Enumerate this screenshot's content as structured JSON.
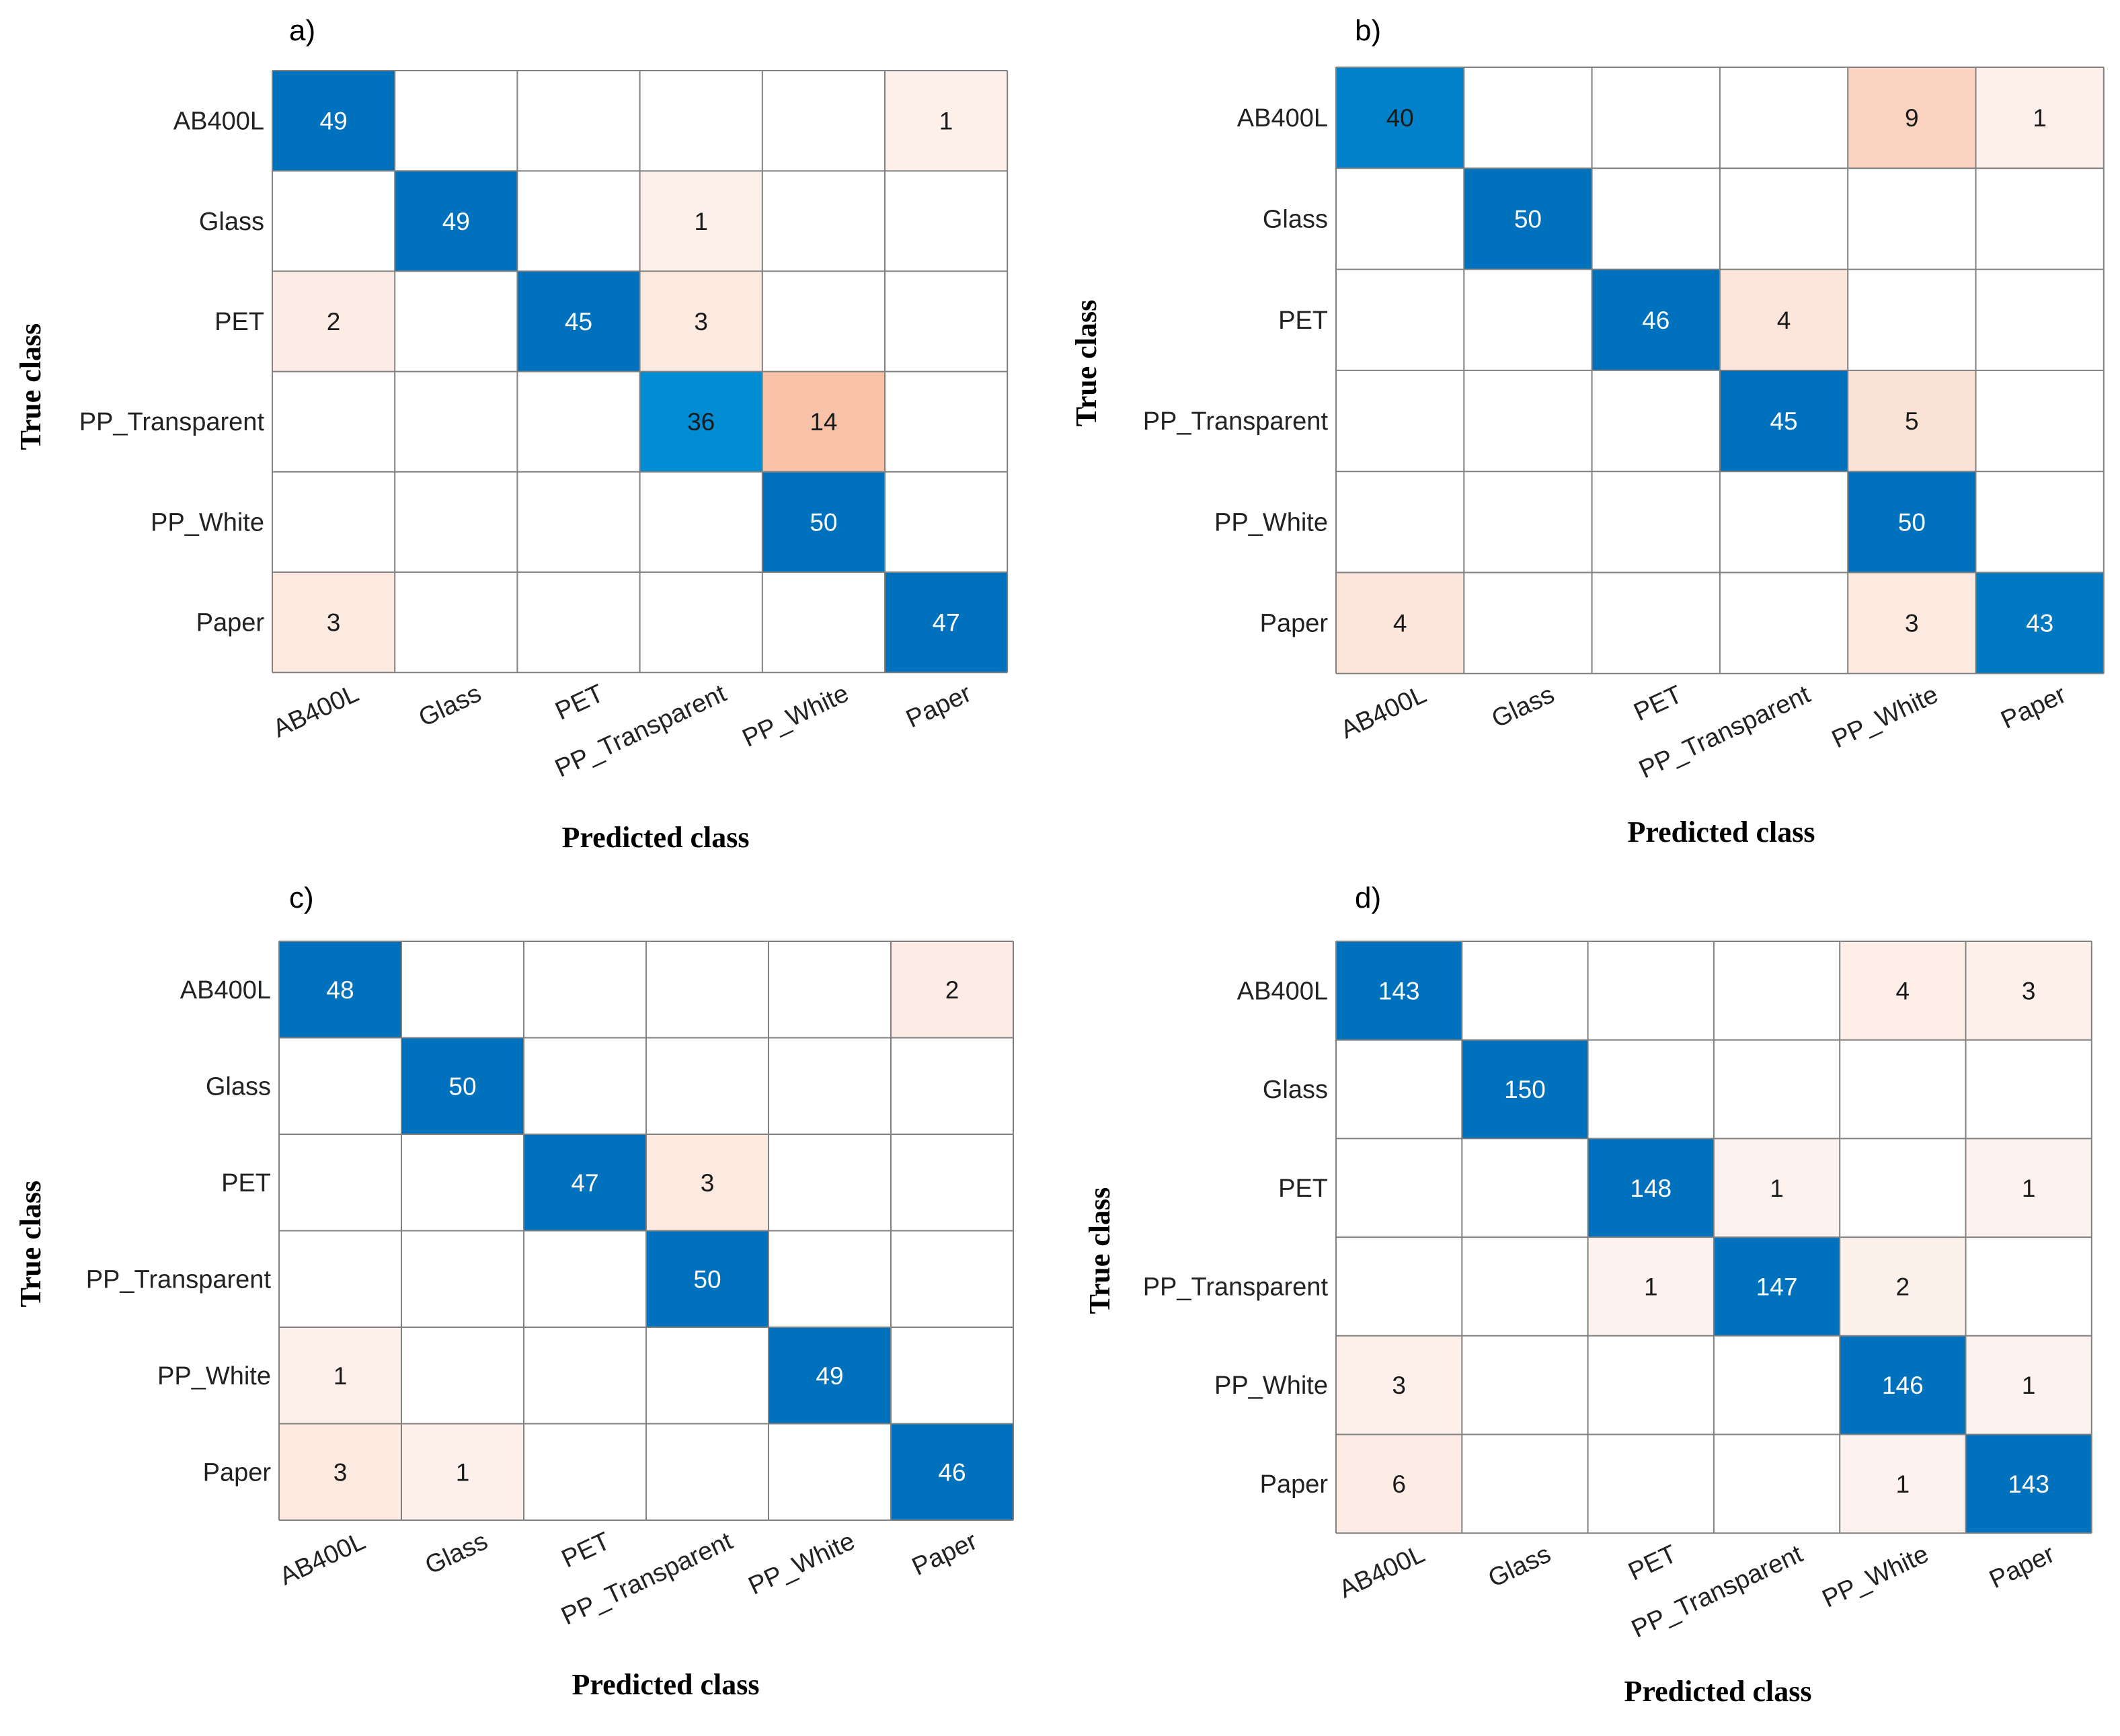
{
  "chart_data": [
    {
      "type": "heatmap",
      "panel_label": "a)",
      "xlabel": "Predicted class",
      "ylabel": "True class",
      "x_categories": [
        "AB400L",
        "Glass",
        "PET",
        "PP_Transparent",
        "PP_White",
        "Paper"
      ],
      "y_categories": [
        "AB400L",
        "Glass",
        "PET",
        "PP_Transparent",
        "PP_White",
        "Paper"
      ],
      "matrix": [
        [
          49,
          0,
          0,
          0,
          0,
          1
        ],
        [
          0,
          49,
          0,
          1,
          0,
          0
        ],
        [
          2,
          0,
          45,
          3,
          0,
          0
        ],
        [
          0,
          0,
          0,
          36,
          14,
          0
        ],
        [
          0,
          0,
          0,
          0,
          50,
          0
        ],
        [
          3,
          0,
          0,
          0,
          0,
          47
        ]
      ]
    },
    {
      "type": "heatmap",
      "panel_label": "b)",
      "xlabel": "Predicted class",
      "ylabel": "True class",
      "x_categories": [
        "AB400L",
        "Glass",
        "PET",
        "PP_Transparent",
        "PP_White",
        "Paper"
      ],
      "y_categories": [
        "AB400L",
        "Glass",
        "PET",
        "PP_Transparent",
        "PP_White",
        "Paper"
      ],
      "matrix": [
        [
          40,
          0,
          0,
          0,
          9,
          1
        ],
        [
          0,
          50,
          0,
          0,
          0,
          0
        ],
        [
          0,
          0,
          46,
          4,
          0,
          0
        ],
        [
          0,
          0,
          0,
          45,
          5,
          0
        ],
        [
          0,
          0,
          0,
          0,
          50,
          0
        ],
        [
          4,
          0,
          0,
          0,
          3,
          43
        ]
      ]
    },
    {
      "type": "heatmap",
      "panel_label": "c)",
      "xlabel": "Predicted class",
      "ylabel": "True class",
      "x_categories": [
        "AB400L",
        "Glass",
        "PET",
        "PP_Transparent",
        "PP_White",
        "Paper"
      ],
      "y_categories": [
        "AB400L",
        "Glass",
        "PET",
        "PP_Transparent",
        "PP_White",
        "Paper"
      ],
      "matrix": [
        [
          48,
          0,
          0,
          0,
          0,
          2
        ],
        [
          0,
          50,
          0,
          0,
          0,
          0
        ],
        [
          0,
          0,
          47,
          3,
          0,
          0
        ],
        [
          0,
          0,
          0,
          50,
          0,
          0
        ],
        [
          1,
          0,
          0,
          0,
          49,
          0
        ],
        [
          3,
          1,
          0,
          0,
          0,
          46
        ]
      ]
    },
    {
      "type": "heatmap",
      "panel_label": "d)",
      "xlabel": "Predicted class",
      "ylabel": "True class",
      "x_categories": [
        "AB400L",
        "Glass",
        "PET",
        "PP_Transparent",
        "PP_White",
        "Paper"
      ],
      "y_categories": [
        "AB400L",
        "Glass",
        "PET",
        "PP_Transparent",
        "PP_White",
        "Paper"
      ],
      "matrix": [
        [
          143,
          0,
          0,
          0,
          4,
          3
        ],
        [
          0,
          150,
          0,
          0,
          0,
          0
        ],
        [
          0,
          0,
          148,
          1,
          0,
          1
        ],
        [
          0,
          0,
          1,
          147,
          2,
          0
        ],
        [
          3,
          0,
          0,
          0,
          146,
          1
        ],
        [
          6,
          0,
          0,
          0,
          1,
          143
        ]
      ]
    }
  ],
  "colors": {
    "diag_strong": "#0072BD",
    "diag_light": "#0090D6",
    "off_light": "#FDF3EF",
    "off_strong": "#F8C2A8",
    "grid": "#808080",
    "text_dark": "#1a1a1a",
    "text_light": "#ffffff"
  }
}
